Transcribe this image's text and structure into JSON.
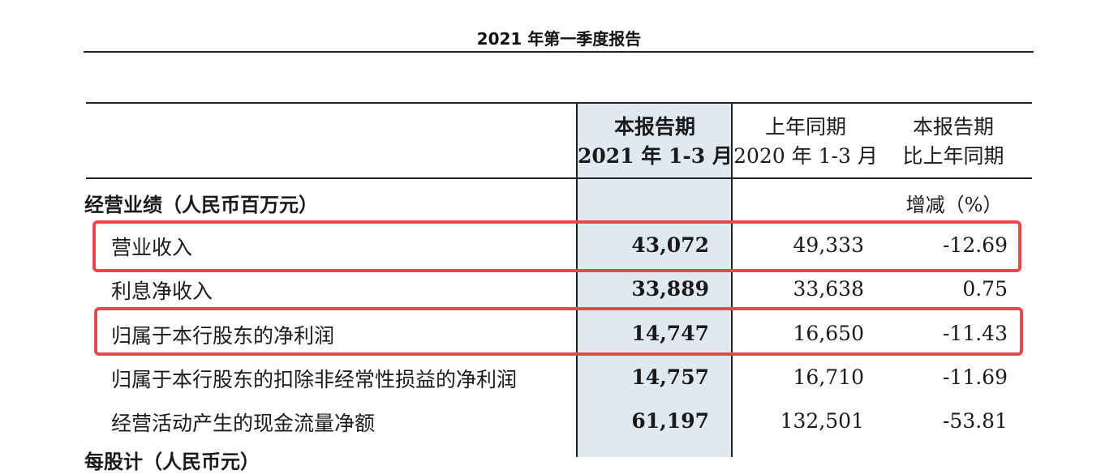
{
  "page_title": "2021 年第一季度报告",
  "table": {
    "col_headers": {
      "current": [
        "本报告期",
        "2021 年 1-3 月"
      ],
      "prior": [
        "上年同期",
        "2020 年 1-3 月"
      ],
      "change": [
        "本报告期",
        "比上年同期"
      ]
    },
    "section_title": "经营业绩（人民币百万元）",
    "change_unit": "增减（%）",
    "rows": [
      {
        "label": "营业收入",
        "current": "43,072",
        "prior": "49,333",
        "change": "-12.69"
      },
      {
        "label": "利息净收入",
        "current": "33,889",
        "prior": "33,638",
        "change": "0.75"
      },
      {
        "label": "归属于本行股东的净利润",
        "current": "14,747",
        "prior": "16,650",
        "change": "-11.43"
      },
      {
        "label": "归属于本行股东的扣除非经常性损益的净利润",
        "current": "14,757",
        "prior": "16,710",
        "change": "-11.69"
      },
      {
        "label": "经营活动产生的现金流量净额",
        "current": "61,197",
        "prior": "132,501",
        "change": "-53.81"
      }
    ],
    "next_section_partial": "每股计（人民币元）"
  },
  "colors": {
    "highlight_column": "#dfe9f2",
    "annotation_box": "#e8474f"
  }
}
